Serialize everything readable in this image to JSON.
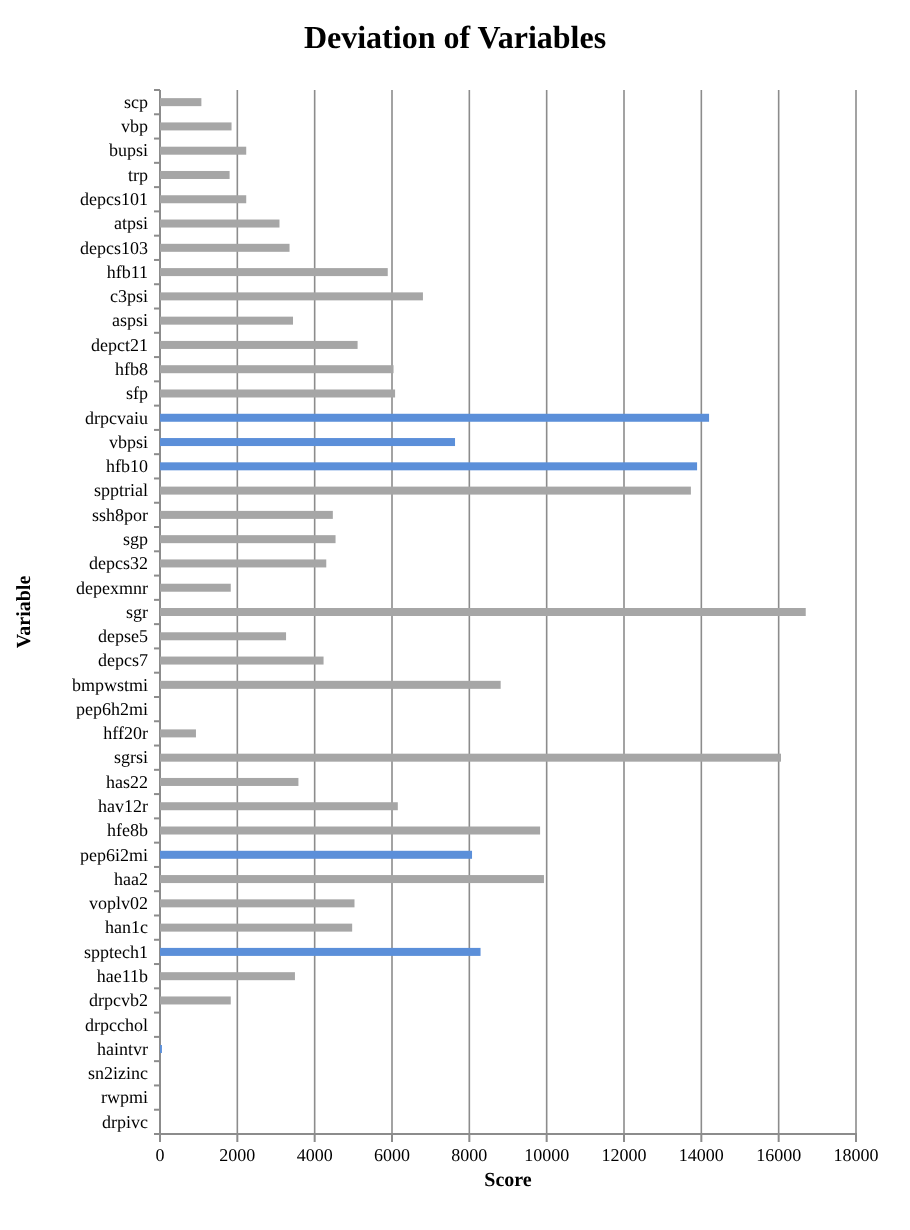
{
  "chart_data": {
    "type": "bar",
    "orientation": "horizontal",
    "title": "Deviation of Variables",
    "xlabel": "Score",
    "ylabel": "Variable",
    "categories": [
      "scp",
      "vbp",
      "bupsi",
      "trp",
      "depcs101",
      "atpsi",
      "depcs103",
      "hfb11",
      "c3psi",
      "aspsi",
      "depct21",
      "hfb8",
      "sfp",
      "drpcvaiu",
      "vbpsi",
      "hfb10",
      "spptrial",
      "ssh8por",
      "sgp",
      "depcs32",
      "depexmnr",
      "sgr",
      "depse5",
      "depcs7",
      "bmpwstmi",
      "pep6h2mi",
      "hff20r",
      "sgrsi",
      "has22",
      "hav12r",
      "hfe8b",
      "pep6i2mi",
      "haa2",
      "voplv02",
      "han1c",
      "spptech1",
      "hae11b",
      "drpcvb2",
      "drpcchol",
      "haintvr",
      "sn2izinc",
      "rwpmi",
      "drpivc"
    ],
    "values": [
      1070,
      1850,
      2230,
      1800,
      2230,
      3090,
      3350,
      5890,
      6800,
      3440,
      5110,
      6040,
      6080,
      14200,
      7630,
      13890,
      13730,
      4470,
      4540,
      4300,
      1830,
      16700,
      3260,
      4230,
      8810,
      0,
      930,
      16060,
      3580,
      6150,
      9830,
      8070,
      9930,
      5030,
      4970,
      8290,
      3490,
      1830,
      null,
      50,
      null,
      0,
      0
    ],
    "colors": [
      "#a6a6a6",
      "#a6a6a6",
      "#a6a6a6",
      "#a6a6a6",
      "#a6a6a6",
      "#a6a6a6",
      "#a6a6a6",
      "#a6a6a6",
      "#a6a6a6",
      "#a6a6a6",
      "#a6a6a6",
      "#a6a6a6",
      "#a6a6a6",
      "#5b8fd9",
      "#5b8fd9",
      "#5b8fd9",
      "#a6a6a6",
      "#a6a6a6",
      "#a6a6a6",
      "#a6a6a6",
      "#a6a6a6",
      "#a6a6a6",
      "#a6a6a6",
      "#a6a6a6",
      "#a6a6a6",
      "#a6a6a6",
      "#a6a6a6",
      "#a6a6a6",
      "#a6a6a6",
      "#a6a6a6",
      "#a6a6a6",
      "#5b8fd9",
      "#a6a6a6",
      "#a6a6a6",
      "#a6a6a6",
      "#5b8fd9",
      "#a6a6a6",
      "#a6a6a6",
      "#a6a6a6",
      "#5b8fd9",
      "#a6a6a6",
      "#a6a6a6",
      "#a6a6a6"
    ],
    "xlim": [
      0,
      18000
    ],
    "xticks": [
      0,
      2000,
      4000,
      6000,
      8000,
      10000,
      12000,
      14000,
      16000,
      18000
    ],
    "grid": "x"
  }
}
